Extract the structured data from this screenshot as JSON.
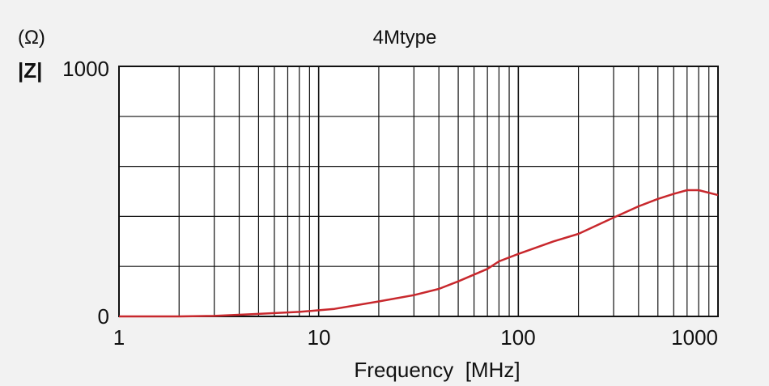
{
  "chart_data": {
    "type": "line",
    "title": "4Mtype",
    "unit_label": "(Ω)",
    "ylabel": "|Z|",
    "xlabel": "Frequency  [MHz]",
    "xscale": "log",
    "xlim": [
      1,
      1000
    ],
    "ylim": [
      0,
      1000
    ],
    "grid": true,
    "x_tick_labels": [
      "1",
      "10",
      "100",
      "1000"
    ],
    "y_tick_labels": [
      "0",
      "1000"
    ],
    "series": [
      {
        "color": "#c8282d",
        "x": [
          1,
          2,
          3,
          5,
          8,
          12,
          20,
          30,
          40,
          50,
          70,
          80,
          100,
          150,
          200,
          300,
          400,
          500,
          600,
          700,
          800,
          1000
        ],
        "y": [
          0,
          0,
          2,
          10,
          18,
          30,
          60,
          85,
          110,
          140,
          190,
          220,
          250,
          300,
          330,
          395,
          440,
          470,
          490,
          505,
          505,
          485
        ]
      }
    ]
  }
}
